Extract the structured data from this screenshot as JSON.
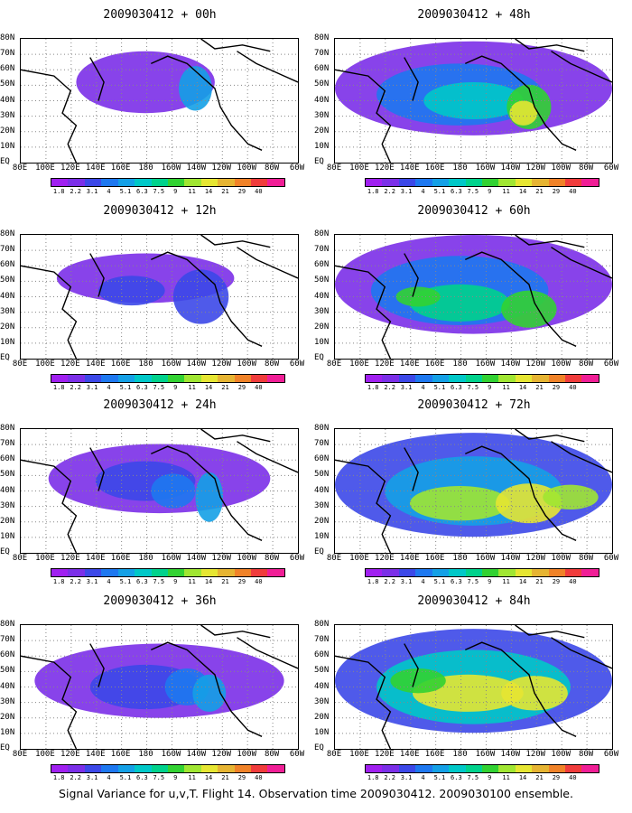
{
  "panels": [
    {
      "title": "2009030412 + 00h",
      "col": 0,
      "row": 0
    },
    {
      "title": "2009030412 + 12h",
      "col": 0,
      "row": 1
    },
    {
      "title": "2009030412 + 24h",
      "col": 0,
      "row": 2
    },
    {
      "title": "2009030412 + 36h",
      "col": 0,
      "row": 3
    },
    {
      "title": "2009030412 + 48h",
      "col": 1,
      "row": 0
    },
    {
      "title": "2009030412 + 60h",
      "col": 1,
      "row": 1
    },
    {
      "title": "2009030412 + 72h",
      "col": 1,
      "row": 2
    },
    {
      "title": "2009030412 + 84h",
      "col": 1,
      "row": 3
    }
  ],
  "lat_labels": [
    "80N",
    "70N",
    "60N",
    "50N",
    "40N",
    "30N",
    "20N",
    "10N",
    "EQ"
  ],
  "lon_labels": [
    "80E",
    "100E",
    "120E",
    "140E",
    "160E",
    "180",
    "160W",
    "140W",
    "120W",
    "100W",
    "80W",
    "60W"
  ],
  "colorbar": {
    "labels": [
      "1.8",
      "2.2",
      "3.1",
      "4",
      "5.1",
      "6.3",
      "7.5",
      "9",
      "11",
      "14",
      "21",
      "29",
      "40"
    ],
    "colors": [
      "#a020f0",
      "#7b2fe8",
      "#3c48e8",
      "#1e78f0",
      "#14a0e6",
      "#00c8c8",
      "#00d28c",
      "#32d232",
      "#a0e632",
      "#e6e632",
      "#e6b432",
      "#f08228",
      "#f03c3c",
      "#f01e96"
    ]
  },
  "caption": "Signal Variance for u,v,T. Flight 14. Observation time 2009030412. 2009030100 ensemble."
}
